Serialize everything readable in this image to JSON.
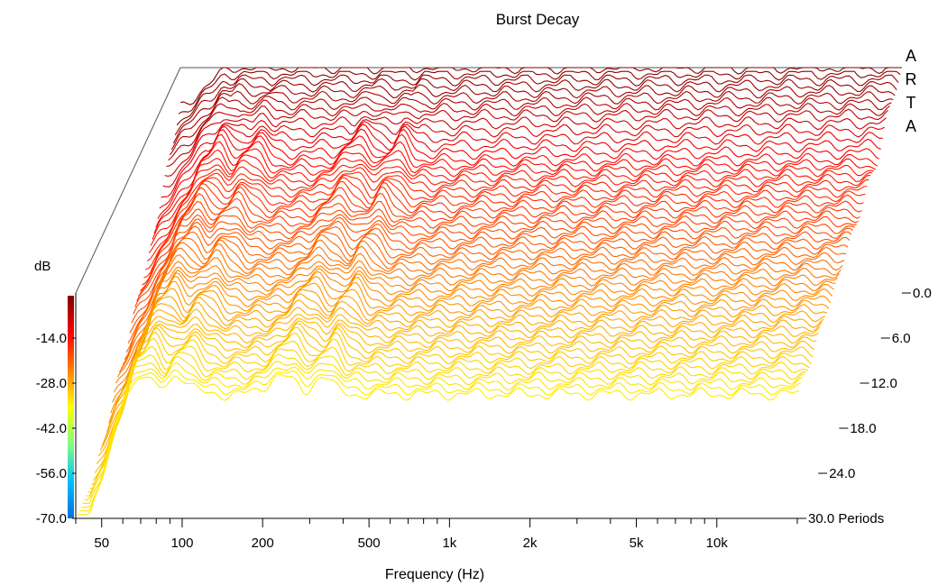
{
  "chart_data": {
    "type": "waterfall",
    "title": "Burst Decay",
    "watermark": "ARTA",
    "xlabel": "Frequency (Hz)",
    "zlabel": "dB",
    "x_scale": "log",
    "xlim": [
      40,
      20000
    ],
    "zlim": [
      -70,
      0
    ],
    "ylim": [
      0,
      30
    ],
    "y_unit": "Periods",
    "x_ticks": [
      "50",
      "100",
      "200",
      "500",
      "1k",
      "2k",
      "5k",
      "10k"
    ],
    "x_tick_values": [
      50,
      100,
      200,
      500,
      1000,
      2000,
      5000,
      10000
    ],
    "z_ticks": [
      "-14.0",
      "-28.0",
      "-42.0",
      "-56.0",
      "-70.0"
    ],
    "z_tick_values": [
      -14,
      -28,
      -42,
      -56,
      -70
    ],
    "y_ticks": [
      "0.0",
      "6.0",
      "12.0",
      "18.0",
      "24.0",
      "30.0 Periods"
    ],
    "y_tick_values": [
      0,
      6,
      12,
      18,
      24,
      30
    ],
    "num_slices": 60,
    "slice_step_periods": 0.5,
    "colormap": [
      "#0070e0",
      "#00c0ff",
      "#80ff80",
      "#ffff00",
      "#ff8000",
      "#ff0000",
      "#800000"
    ],
    "resonances_hz": [
      70,
      95,
      230,
      330,
      470,
      1150,
      2800
    ]
  }
}
